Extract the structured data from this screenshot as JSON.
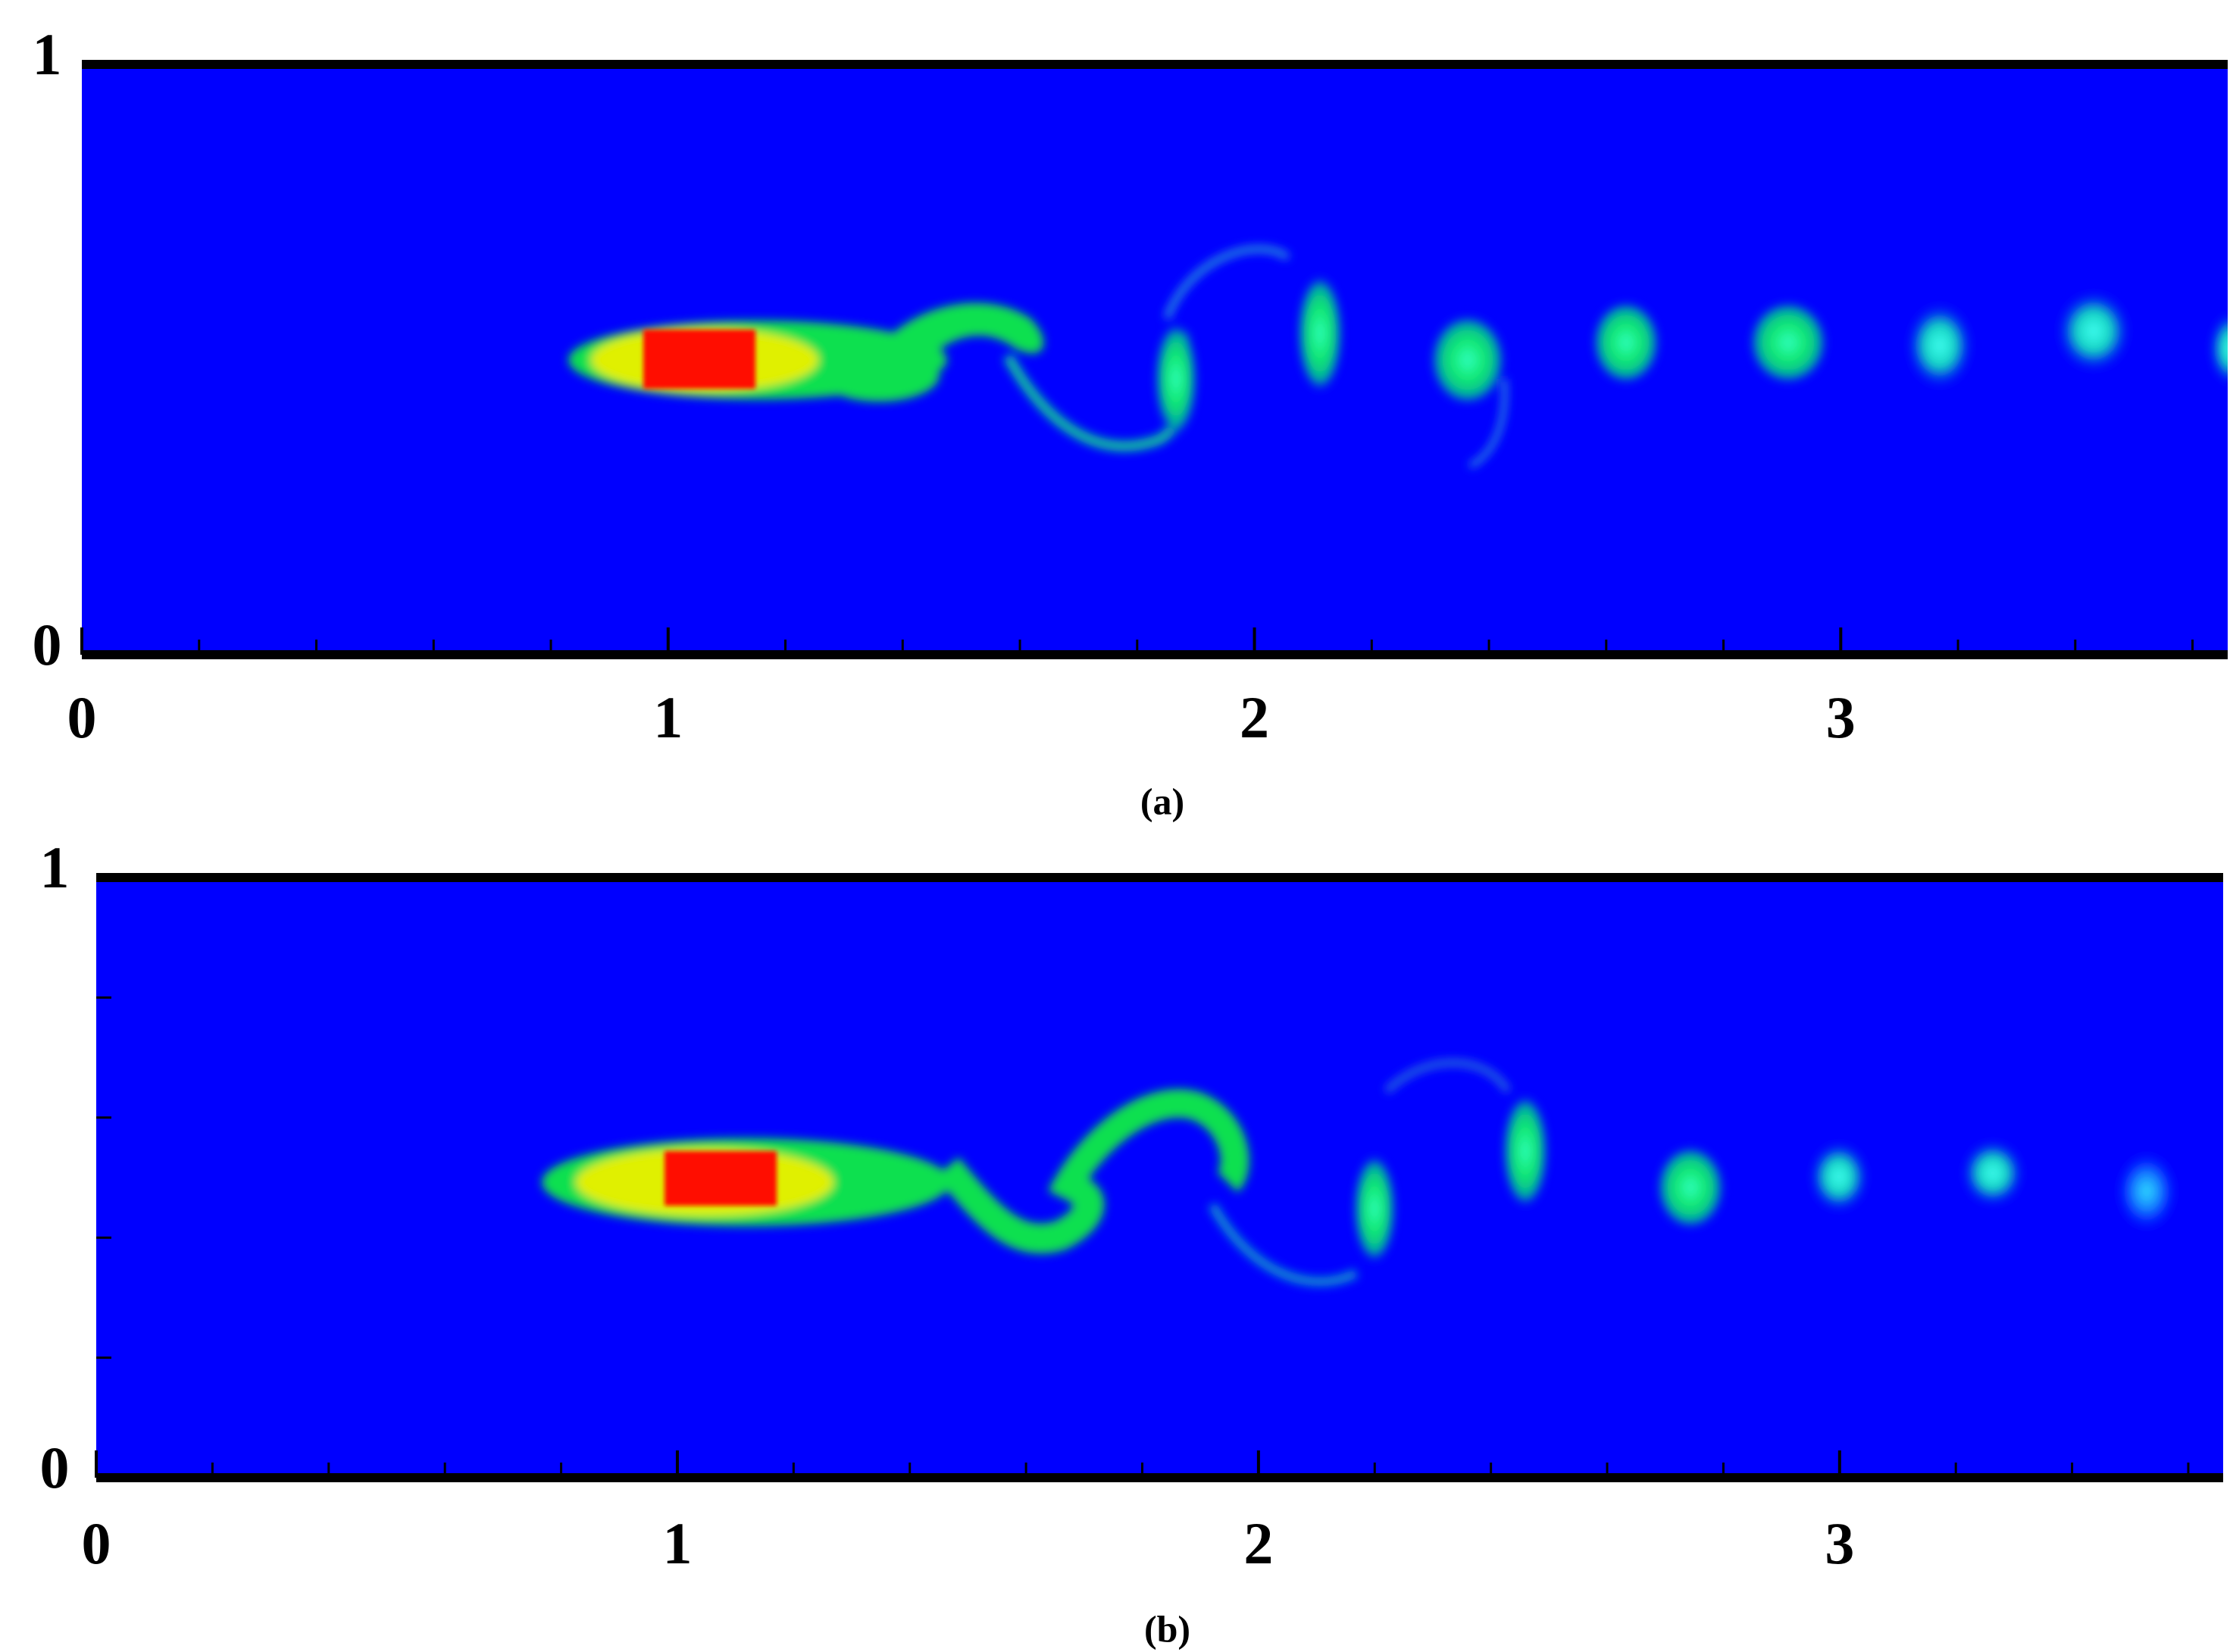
{
  "chart_data": [
    {
      "type": "contour",
      "caption": "(a)",
      "xlim": [
        0,
        3.66
      ],
      "ylim": [
        0,
        1
      ],
      "xticks": [
        0,
        1,
        2,
        3
      ],
      "yticks": [
        0,
        1
      ],
      "xminorticks": [
        0.2,
        0.4,
        0.6,
        0.8,
        1.2,
        1.4,
        1.6,
        1.8,
        2.2,
        2.4,
        2.6,
        2.8,
        3.2,
        3.4,
        3.6
      ],
      "yminorticks": [],
      "background": "#0000ff"
    },
    {
      "type": "contour",
      "caption": "(b)",
      "xlim": [
        0,
        3.66
      ],
      "ylim": [
        0,
        1
      ],
      "xticks": [
        0,
        1,
        2,
        3
      ],
      "yticks": [
        0,
        1
      ],
      "xminorticks": [
        0.2,
        0.4,
        0.6,
        0.8,
        1.2,
        1.4,
        1.6,
        1.8,
        2.2,
        2.4,
        2.6,
        2.8,
        3.2,
        3.4,
        3.6
      ],
      "yminorticks": [
        0.2,
        0.4,
        0.6,
        0.8
      ],
      "background": "#0000ff"
    }
  ]
}
